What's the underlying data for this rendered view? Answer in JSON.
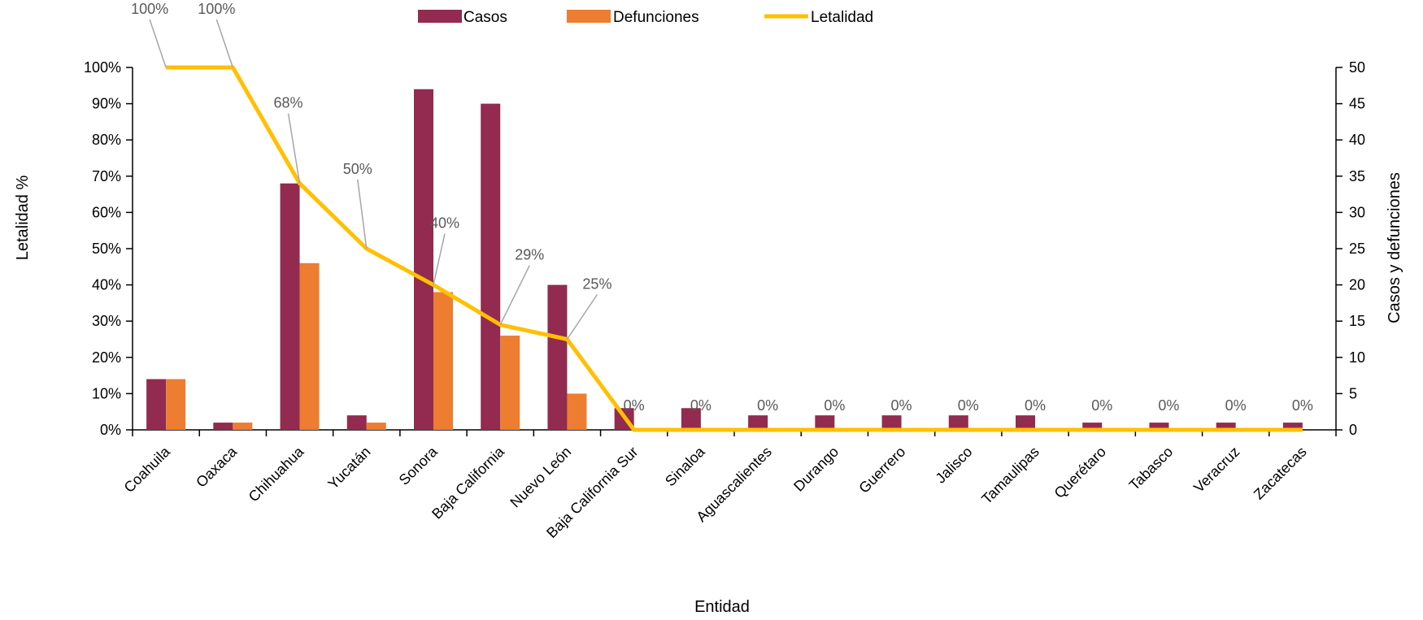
{
  "chart_data": {
    "type": "bar",
    "title": "",
    "xlabel": "Entidad",
    "ylabel_left": "Letalidad %",
    "ylabel_right": "Casos y defunciones",
    "categories": [
      "Coahuila",
      "Oaxaca",
      "Chihuahua",
      "Yucatán",
      "Sonora",
      "Baja California",
      "Nuevo León",
      "Baja California Sur",
      "Sinaloa",
      "Aguascalientes",
      "Durango",
      "Guerrero",
      "Jalisco",
      "Tamaulipas",
      "Querétaro",
      "Tabasco",
      "Veracruz",
      "Zacatecas"
    ],
    "series": [
      {
        "name": "Casos",
        "type": "bar",
        "axis": "right",
        "color": "#922B4F",
        "values": [
          7,
          1,
          34,
          2,
          47,
          45,
          20,
          3,
          3,
          2,
          2,
          2,
          2,
          2,
          1,
          1,
          1,
          1
        ]
      },
      {
        "name": "Defunciones",
        "type": "bar",
        "axis": "right",
        "color": "#ED7D31",
        "values": [
          7,
          1,
          23,
          1,
          19,
          13,
          5,
          0,
          0,
          0,
          0,
          0,
          0,
          0,
          0,
          0,
          0,
          0
        ]
      },
      {
        "name": "Letalidad",
        "type": "line",
        "axis": "left",
        "color": "#FFC000",
        "values": [
          100,
          100,
          68,
          50,
          40,
          29,
          25,
          0,
          0,
          0,
          0,
          0,
          0,
          0,
          0,
          0,
          0,
          0
        ],
        "labels": [
          "100%",
          "100%",
          "68%",
          "50%",
          "40%",
          "29%",
          "25%",
          "0%",
          "0%",
          "0%",
          "0%",
          "0%",
          "0%",
          "0%",
          "0%",
          "0%",
          "0%",
          "0%"
        ]
      }
    ],
    "y_left": {
      "min": 0,
      "max": 100,
      "step": 10,
      "ticks": [
        "0%",
        "10%",
        "20%",
        "30%",
        "40%",
        "50%",
        "60%",
        "70%",
        "80%",
        "90%",
        "100%"
      ]
    },
    "y_right": {
      "min": 0,
      "max": 50,
      "step": 5,
      "ticks": [
        "0",
        "5",
        "10",
        "15",
        "20",
        "25",
        "30",
        "35",
        "40",
        "45",
        "50"
      ]
    },
    "legend_position": "top-center",
    "grid": false
  }
}
